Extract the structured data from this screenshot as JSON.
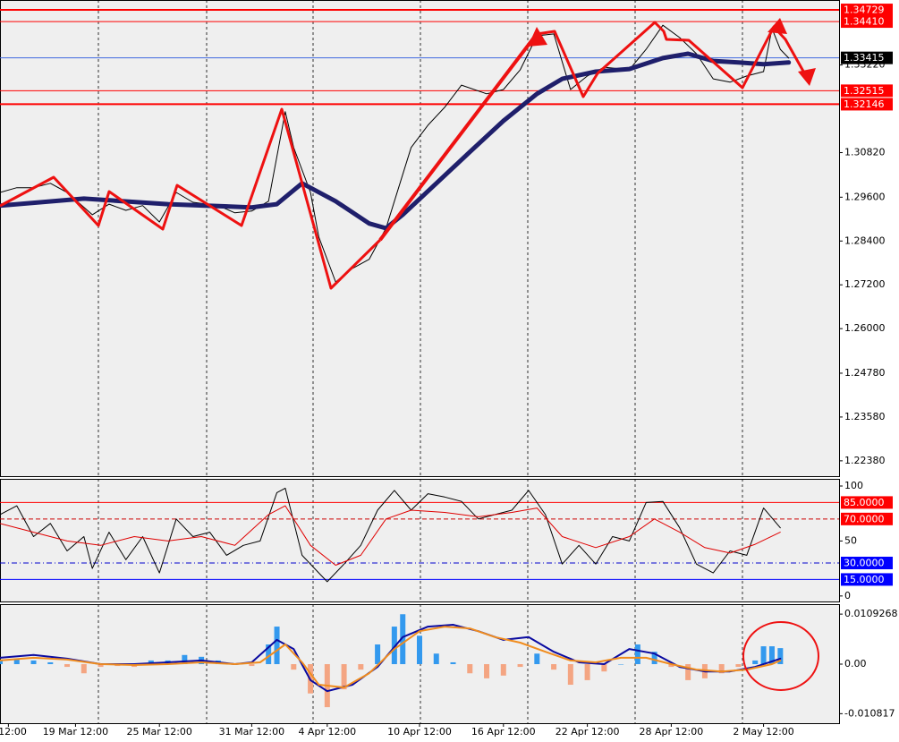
{
  "chart_data": [
    {
      "type": "line",
      "xlim": [
        0,
        100
      ],
      "ylim": [
        1.2196,
        1.35
      ],
      "yticks": [
        {
          "value": 1.2238,
          "label": "1.22380"
        },
        {
          "value": 1.2358,
          "label": "1.23580"
        },
        {
          "value": 1.2478,
          "label": "1.24780"
        },
        {
          "value": 1.26,
          "label": "1.26000"
        },
        {
          "value": 1.272,
          "label": "1.27200"
        },
        {
          "value": 1.284,
          "label": "1.28400"
        },
        {
          "value": 1.296,
          "label": "1.29600"
        },
        {
          "value": 1.3082,
          "label": "1.30820"
        },
        {
          "value": 1.3322,
          "label": "1.33220"
        }
      ],
      "levels": [
        {
          "value": 1.34729,
          "line_color": "#ff0000",
          "box_color": "#ff0000",
          "line_style": "solid",
          "line_width": 2
        },
        {
          "value": 1.3441,
          "label": "1.34410",
          "line_color": "#ff0000",
          "box_color": "#ff0000",
          "line_style": "solid",
          "line_width": 1
        },
        {
          "value": 1.33415,
          "line_color": "#4169e1",
          "box_color": "#000000",
          "line_style": "solid",
          "line_width": 1
        },
        {
          "value": 1.32515,
          "line_color": "#ff0000",
          "box_color": "#ff0000",
          "line_style": "solid",
          "line_width": 1
        },
        {
          "value": 1.32146,
          "line_color": "#ff0000",
          "box_color": "#ff0000",
          "line_style": "solid",
          "line_width": 2
        }
      ],
      "series": [
        {
          "type": "line",
          "color": "#000000",
          "width": 1,
          "x": [
            0,
            2,
            4,
            6,
            8,
            11,
            13,
            15,
            17,
            19,
            21,
            23,
            26,
            28,
            30,
            32,
            34,
            35,
            37,
            38,
            40,
            42,
            44,
            46,
            47,
            49,
            51,
            53,
            55,
            58,
            60,
            62,
            64,
            66,
            68,
            70,
            72,
            75,
            77,
            79,
            81,
            83,
            85,
            87,
            89,
            91,
            92,
            93,
            94
          ],
          "values": [
            1.2973,
            1.2986,
            1.2986,
            1.2998,
            1.2973,
            1.2912,
            1.2941,
            1.2924,
            1.2937,
            1.2892,
            1.2973,
            1.2946,
            1.2937,
            1.2917,
            1.2922,
            1.2949,
            1.3194,
            1.3096,
            1.2973,
            1.2851,
            1.2728,
            1.2765,
            1.279,
            1.2875,
            1.2949,
            1.3096,
            1.3157,
            1.3206,
            1.3267,
            1.3243,
            1.3255,
            1.3309,
            1.3402,
            1.3407,
            1.3255,
            1.3292,
            1.3316,
            1.3309,
            1.3365,
            1.3431,
            1.3397,
            1.3353,
            1.3284,
            1.3275,
            1.3292,
            1.3304,
            1.3422,
            1.3365,
            1.3341
          ]
        },
        {
          "type": "line",
          "color": "#1f1f6b",
          "width": 5,
          "x": [
            0,
            10,
            20,
            30,
            33,
            36,
            40,
            44,
            46,
            48,
            52,
            56,
            60,
            64,
            67,
            71,
            75,
            79,
            82,
            85,
            88,
            91,
            94
          ],
          "values": [
            1.2937,
            1.2956,
            1.2941,
            1.2932,
            1.2941,
            1.2998,
            1.2949,
            1.2888,
            1.2875,
            1.2912,
            1.2998,
            1.3084,
            1.3169,
            1.3243,
            1.3284,
            1.3304,
            1.3311,
            1.3341,
            1.3353,
            1.3333,
            1.3329,
            1.3324,
            1.3329
          ]
        }
      ]
    },
    {
      "type": "line",
      "xlim": [
        0,
        100
      ],
      "ylim": [
        -5,
        106.5
      ],
      "yticks": [
        100,
        50,
        0
      ],
      "levels": [
        {
          "value": 85,
          "label": "85.0000",
          "line_color": "#ff0000",
          "box_color": "#ff0000",
          "line_style": "solid",
          "line_width": 1
        },
        {
          "value": 70,
          "label": "70.0000",
          "line_color": "#cc0000",
          "box_color": "#ff0000",
          "line_style": "dashed",
          "line_width": 1
        },
        {
          "value": 30,
          "label": "30.0000",
          "line_color": "#0000cc",
          "box_color": "#0000ff",
          "line_style": "dashdot",
          "line_width": 1
        },
        {
          "value": 15,
          "label": "15.0000",
          "line_color": "#0000ff",
          "box_color": "#0000ff",
          "line_style": "solid",
          "line_width": 1
        }
      ],
      "series": [
        {
          "type": "line",
          "color": "#000000",
          "width": 1,
          "x": [
            0,
            2,
            4,
            6,
            8,
            10,
            11,
            13,
            15,
            17,
            19,
            21,
            23,
            25,
            27,
            29,
            31,
            33,
            34,
            36,
            38,
            39,
            41,
            43,
            45,
            47,
            49,
            51,
            53,
            55,
            57,
            59,
            61,
            63,
            65,
            67,
            69,
            71,
            73,
            75,
            77,
            79,
            81,
            83,
            85,
            87,
            89,
            91,
            93
          ],
          "values": [
            74,
            82,
            54,
            66,
            41,
            54,
            25,
            58,
            33,
            54,
            21,
            70,
            54,
            58,
            37,
            46,
            50,
            94,
            98,
            37,
            21,
            13,
            29,
            46,
            78,
            96,
            78,
            93,
            90,
            86,
            70,
            74,
            78,
            96,
            74,
            29,
            46,
            29,
            54,
            50,
            85,
            86,
            62,
            29,
            21,
            41,
            37,
            80,
            62
          ]
        },
        {
          "type": "line",
          "color": "#e00000",
          "width": 1,
          "x": [
            0,
            4,
            8,
            12,
            16,
            20,
            24,
            28,
            32,
            34,
            37,
            40,
            43,
            46,
            49,
            53,
            57,
            61,
            64,
            67,
            71,
            75,
            78,
            81,
            84,
            87,
            90,
            93
          ],
          "values": [
            66,
            58,
            50,
            46,
            54,
            50,
            54,
            46,
            74,
            82,
            46,
            28,
            37,
            70,
            78,
            76,
            72,
            76,
            80,
            54,
            44,
            54,
            70,
            58,
            44,
            39,
            47,
            58
          ]
        }
      ]
    },
    {
      "type": "combo",
      "xlim": [
        0,
        100
      ],
      "ylim": [
        -0.0129,
        0.0131
      ],
      "yticks": [
        0.0109268,
        {
          "value": 0,
          "label": "0.00"
        },
        -0.010817
      ],
      "xticks": [
        {
          "value": 1,
          "label": "12:00"
        },
        {
          "value": 9,
          "label": "19 Mar 12:00"
        },
        {
          "value": 19,
          "label": "25 Mar 12:00"
        },
        {
          "value": 30,
          "label": "31 Mar 12:00"
        },
        {
          "value": 39,
          "label": "4 Apr 12:00"
        },
        {
          "value": 50,
          "label": "10 Apr 12:00"
        },
        {
          "value": 60,
          "label": "16 Apr 12:00"
        },
        {
          "value": 70,
          "label": "22 Apr 12:00"
        },
        {
          "value": 80,
          "label": "28 Apr 12:00"
        },
        {
          "value": 91,
          "label": "2 May 12:00"
        }
      ],
      "series": [
        {
          "type": "bar",
          "color": "#3399ee",
          "negative_color": "#f4a582",
          "x": [
            0,
            2,
            4,
            6,
            8,
            10,
            12,
            14,
            16,
            18,
            20,
            22,
            24,
            26,
            28,
            30,
            32,
            33,
            35,
            37,
            39,
            41,
            43,
            45,
            47,
            48,
            50,
            52,
            54,
            56,
            58,
            60,
            62,
            64,
            66,
            68,
            70,
            72,
            74,
            76,
            78,
            80,
            82,
            84,
            86,
            88,
            90,
            91,
            92,
            93
          ],
          "values": [
            0.0008,
            0.0012,
            0.0008,
            0.0004,
            -0.0006,
            -0.002,
            -0.0006,
            -0.0004,
            -0.0006,
            0.0008,
            0.0008,
            0.002,
            0.0016,
            0.0008,
            0,
            -0.0004,
            0.0043,
            0.0082,
            -0.0012,
            -0.0064,
            -0.0094,
            -0.0055,
            -0.0012,
            0.0043,
            0.0082,
            0.0109,
            0.0062,
            0.0023,
            0.0004,
            -0.002,
            -0.0031,
            -0.0025,
            -0.0006,
            0.0023,
            -0.0012,
            -0.0045,
            -0.0035,
            -0.0016,
            0,
            0.0043,
            0.0027,
            -0.0006,
            -0.0035,
            -0.0031,
            -0.002,
            -0.0006,
            0.0008,
            0.0039,
            0.0039,
            0.0035
          ]
        },
        {
          "type": "line",
          "color": "#0a0aa0",
          "width": 2,
          "x": [
            0,
            4,
            8,
            12,
            16,
            20,
            24,
            28,
            30,
            33,
            35,
            37,
            39,
            42,
            45,
            48,
            51,
            54,
            57,
            60,
            63,
            66,
            69,
            72,
            75,
            78,
            81,
            84,
            87,
            90,
            93
          ],
          "values": [
            0.0014,
            0.002,
            0.0012,
            0,
            0,
            0.0004,
            0.0008,
            0,
            0.0004,
            0.0053,
            0.0033,
            -0.0035,
            -0.0059,
            -0.0045,
            -0.0006,
            0.0059,
            0.0082,
            0.0086,
            0.0072,
            0.0053,
            0.0059,
            0.0027,
            0.0004,
            0,
            0.0033,
            0.0023,
            -0.0006,
            -0.0016,
            -0.0016,
            -0.0006,
            0.0012
          ]
        },
        {
          "type": "line",
          "color": "#f08c1e",
          "width": 2,
          "x": [
            0,
            4,
            8,
            12,
            16,
            20,
            24,
            28,
            31,
            34,
            36,
            38,
            41,
            44,
            47,
            50,
            53,
            56,
            59,
            62,
            65,
            68,
            71,
            74,
            77,
            80,
            83,
            86,
            89,
            92,
            93
          ],
          "values": [
            0.0008,
            0.0014,
            0.001,
            0,
            -0.0002,
            0,
            0.0004,
            0,
            0.0004,
            0.0043,
            0.0004,
            -0.0045,
            -0.0051,
            -0.002,
            0.0033,
            0.0072,
            0.0082,
            0.0078,
            0.0059,
            0.0047,
            0.0027,
            0.0008,
            0.0004,
            0.0014,
            0.0014,
            0,
            -0.0012,
            -0.0016,
            -0.0012,
            0,
            0.0008
          ]
        }
      ]
    }
  ]
}
